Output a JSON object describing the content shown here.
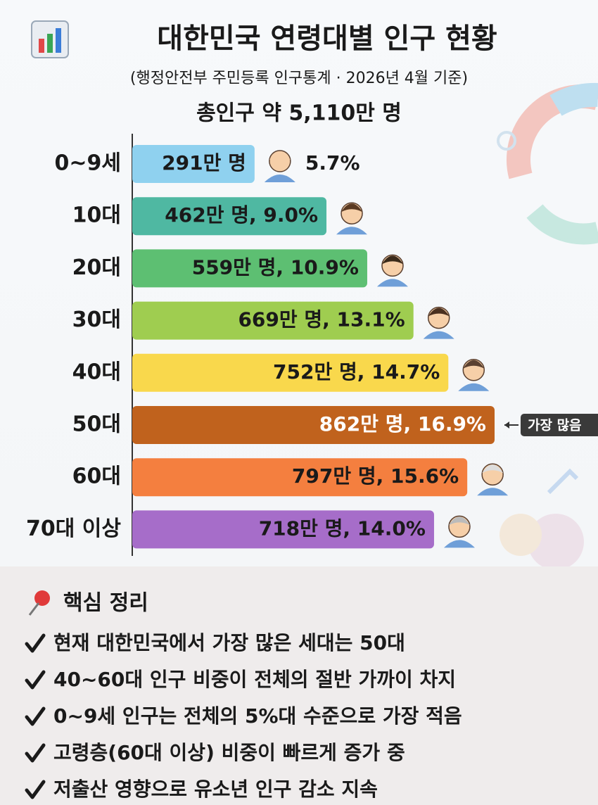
{
  "chart_data": {
    "type": "barh",
    "title": "대한민국 연령대별 인구 현황",
    "subtitle": "(행정안전부 주민등록 인구통계 · 2026년 4월 기준)",
    "total_label": "총인구 약 5,110만 명",
    "categories": [
      "0~9세",
      "10대",
      "20대",
      "30대",
      "40대",
      "50대",
      "60대",
      "70대 이상"
    ],
    "values": [
      291,
      462,
      559,
      669,
      752,
      862,
      797,
      718
    ],
    "value_labels": [
      "291만 명",
      "462만 명, 9.0%",
      "559만 명, 10.9%",
      "669만 명, 13.1%",
      "752만 명, 14.7%",
      "862만 명, 16.9%",
      "797만 명, 15.6%",
      "718만 명, 14.0%"
    ],
    "percent_label": "5.7%",
    "colors": [
      "#8fd1ef",
      "#4fb8a2",
      "#5dbf72",
      "#9fcd50",
      "#f9d84c",
      "#c0621d",
      "#f47f3f",
      "#a66dc9"
    ],
    "highlight": {
      "index": 5,
      "label": "가장 많음"
    }
  },
  "summary": {
    "heading": "핵심 정리",
    "items": [
      "현재 대한민국에서 가장 많은 세대는 50대",
      "40~60대 인구 비중이 전체의 절반 가까이 차지",
      "0~9세 인구는 전체의 5%대 수준으로 가장 적음",
      "고령층(60대 이상) 비중이 빠르게 증가 중",
      "저출산 영향으로 유소년 인구 감소 지속"
    ]
  }
}
